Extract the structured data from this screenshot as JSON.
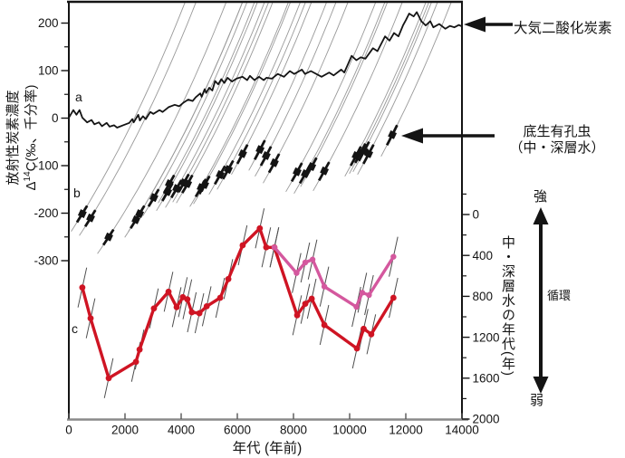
{
  "figure": {
    "x_axis": {
      "title": "年代 (年前)",
      "ticks": [
        0,
        2000,
        4000,
        6000,
        8000,
        10000,
        12000,
        14000
      ],
      "range": [
        0,
        14000
      ]
    },
    "y_left": {
      "title_line1": "放射性炭素濃度",
      "title_prefix": "Δ",
      "title_sup": "14",
      "title_suffix": "C(‰、千分率)",
      "ticks": [
        200,
        100,
        0,
        -100,
        -200,
        -300
      ],
      "minor_step": 50
    },
    "y_right": {
      "title": "中・深層水の年代(年)",
      "ticks": [
        0,
        400,
        800,
        1200,
        1600,
        2000
      ],
      "minor_step": 200
    },
    "labels": {
      "atmosphere": "大気二酸化炭素",
      "benthic_1": "底生有孔虫",
      "benthic_2": "（中・深層水）",
      "strong": "強",
      "weak": "弱",
      "circulation": "循環",
      "series_a": "a",
      "series_b": "b",
      "series_c": "c"
    },
    "colors": {
      "black": "#141414",
      "decay_gray": "#999999",
      "axis_bottom_gray": "#8a8a8a",
      "red": "#cf1423",
      "pink": "#d4589e",
      "tick_segment": "#4d4d4d"
    }
  },
  "chart_data": {
    "type": "line",
    "title": "",
    "xlabel": "年代 (年前)",
    "ylabel_left": "放射性炭素濃度 Δ14C(‰、千分率)",
    "ylabel_right": "中・深層水の年代(年)",
    "xlim": [
      0,
      14000
    ],
    "ylim_left_labeled": [
      -300,
      200
    ],
    "ylim_right": [
      0,
      2000
    ],
    "decay_mean_life_yr": 8267,
    "series": [
      {
        "name": "大気二酸化炭素 (a)",
        "axis": "left",
        "style": "line",
        "color": "black",
        "points": [
          [
            0,
            1
          ],
          [
            160,
            17
          ],
          [
            270,
            7
          ],
          [
            380,
            17
          ],
          [
            480,
            1
          ],
          [
            650,
            -9
          ],
          [
            810,
            -4
          ],
          [
            910,
            -13
          ],
          [
            1070,
            -9
          ],
          [
            1180,
            -17
          ],
          [
            1350,
            -10
          ],
          [
            1450,
            -18
          ],
          [
            1610,
            -15
          ],
          [
            1720,
            -20
          ],
          [
            1930,
            -15
          ],
          [
            2150,
            -10
          ],
          [
            2260,
            -2
          ],
          [
            2310,
            -9
          ],
          [
            2470,
            7
          ],
          [
            2530,
            -5
          ],
          [
            2640,
            4
          ],
          [
            2740,
            -2
          ],
          [
            2900,
            13
          ],
          [
            3010,
            9
          ],
          [
            3230,
            17
          ],
          [
            3340,
            13
          ],
          [
            3550,
            23
          ],
          [
            3770,
            28
          ],
          [
            3930,
            25
          ],
          [
            4090,
            33
          ],
          [
            4250,
            39
          ],
          [
            4410,
            36
          ],
          [
            4520,
            44
          ],
          [
            4680,
            52
          ],
          [
            4730,
            45
          ],
          [
            4840,
            61
          ],
          [
            4890,
            53
          ],
          [
            5000,
            64
          ],
          [
            5110,
            58
          ],
          [
            5210,
            78
          ],
          [
            5320,
            71
          ],
          [
            5430,
            82
          ],
          [
            5540,
            74
          ],
          [
            5650,
            85
          ],
          [
            5810,
            77
          ],
          [
            5970,
            83
          ],
          [
            6180,
            87
          ],
          [
            6350,
            80
          ],
          [
            6450,
            89
          ],
          [
            6610,
            80
          ],
          [
            6770,
            87
          ],
          [
            6940,
            80
          ],
          [
            7040,
            85
          ],
          [
            7230,
            83
          ],
          [
            7440,
            93
          ],
          [
            7660,
            87
          ],
          [
            7870,
            99
          ],
          [
            8030,
            93
          ],
          [
            8300,
            102
          ],
          [
            8410,
            93
          ],
          [
            8620,
            99
          ],
          [
            9000,
            87
          ],
          [
            9270,
            96
          ],
          [
            9430,
            90
          ],
          [
            9700,
            102
          ],
          [
            9810,
            96
          ],
          [
            10070,
            131
          ],
          [
            10240,
            122
          ],
          [
            10400,
            128
          ],
          [
            10560,
            125
          ],
          [
            10830,
            147
          ],
          [
            10990,
            141
          ],
          [
            11260,
            172
          ],
          [
            11420,
            163
          ],
          [
            11580,
            179
          ],
          [
            11740,
            172
          ],
          [
            11900,
            195
          ],
          [
            12010,
            207
          ],
          [
            12120,
            220
          ],
          [
            12280,
            214
          ],
          [
            12390,
            223
          ],
          [
            12550,
            204
          ],
          [
            12710,
            195
          ],
          [
            12870,
            204
          ],
          [
            12980,
            191
          ],
          [
            13190,
            198
          ],
          [
            13410,
            188
          ],
          [
            13570,
            194
          ],
          [
            13730,
            191
          ],
          [
            13890,
            196
          ],
          [
            14000,
            193
          ]
        ]
      },
      {
        "name": "底生有孔虫（中・深層水） (b)",
        "axis": "left",
        "style": "squares_with_decay_lines",
        "color": "black",
        "points": [
          [
            480,
            -201
          ],
          [
            775,
            -210
          ],
          [
            1420,
            -250
          ],
          [
            2390,
            -214
          ],
          [
            2520,
            -201
          ],
          [
            3030,
            -167
          ],
          [
            3520,
            -155
          ],
          [
            3580,
            -138
          ],
          [
            3840,
            -148
          ],
          [
            4100,
            -136
          ],
          [
            4230,
            -138
          ],
          [
            4710,
            -146
          ],
          [
            4840,
            -140
          ],
          [
            5390,
            -119
          ],
          [
            5680,
            -108
          ],
          [
            6190,
            -75
          ],
          [
            6810,
            -66
          ],
          [
            7030,
            -79
          ],
          [
            7320,
            -94
          ],
          [
            8130,
            -113
          ],
          [
            8420,
            -117
          ],
          [
            8650,
            -102
          ],
          [
            9100,
            -111
          ],
          [
            10230,
            -79
          ],
          [
            10390,
            -73
          ],
          [
            10520,
            -69
          ],
          [
            10680,
            -75
          ],
          [
            11520,
            -35
          ]
        ]
      },
      {
        "name": "中・深層水の年代 赤 (c)",
        "axis": "right",
        "style": "line_with_dots",
        "color": "red",
        "points": [
          [
            480,
            714
          ],
          [
            775,
            1015
          ],
          [
            1420,
            1600
          ],
          [
            2390,
            1440
          ],
          [
            2520,
            1320
          ],
          [
            3030,
            918
          ],
          [
            3550,
            755
          ],
          [
            3840,
            906
          ],
          [
            4060,
            808
          ],
          [
            4220,
            829
          ],
          [
            4380,
            956
          ],
          [
            4650,
            965
          ],
          [
            4910,
            897
          ],
          [
            5390,
            814
          ],
          [
            5680,
            631
          ],
          [
            6190,
            301
          ],
          [
            6800,
            135
          ],
          [
            7030,
            321
          ],
          [
            7320,
            321
          ],
          [
            8130,
            985
          ],
          [
            8420,
            873
          ],
          [
            8650,
            823
          ],
          [
            9100,
            1080
          ],
          [
            10260,
            1310
          ],
          [
            10500,
            1118
          ],
          [
            10770,
            1171
          ],
          [
            11560,
            814
          ]
        ]
      },
      {
        "name": "中・深層水の年代 桃",
        "axis": "right",
        "style": "line_with_dots",
        "color": "pink",
        "points": [
          [
            7320,
            321
          ],
          [
            8110,
            572
          ],
          [
            8420,
            469
          ],
          [
            8680,
            440
          ],
          [
            9100,
            705
          ],
          [
            10240,
            903
          ],
          [
            10450,
            764
          ],
          [
            10690,
            788
          ],
          [
            11560,
            413
          ]
        ]
      }
    ]
  }
}
